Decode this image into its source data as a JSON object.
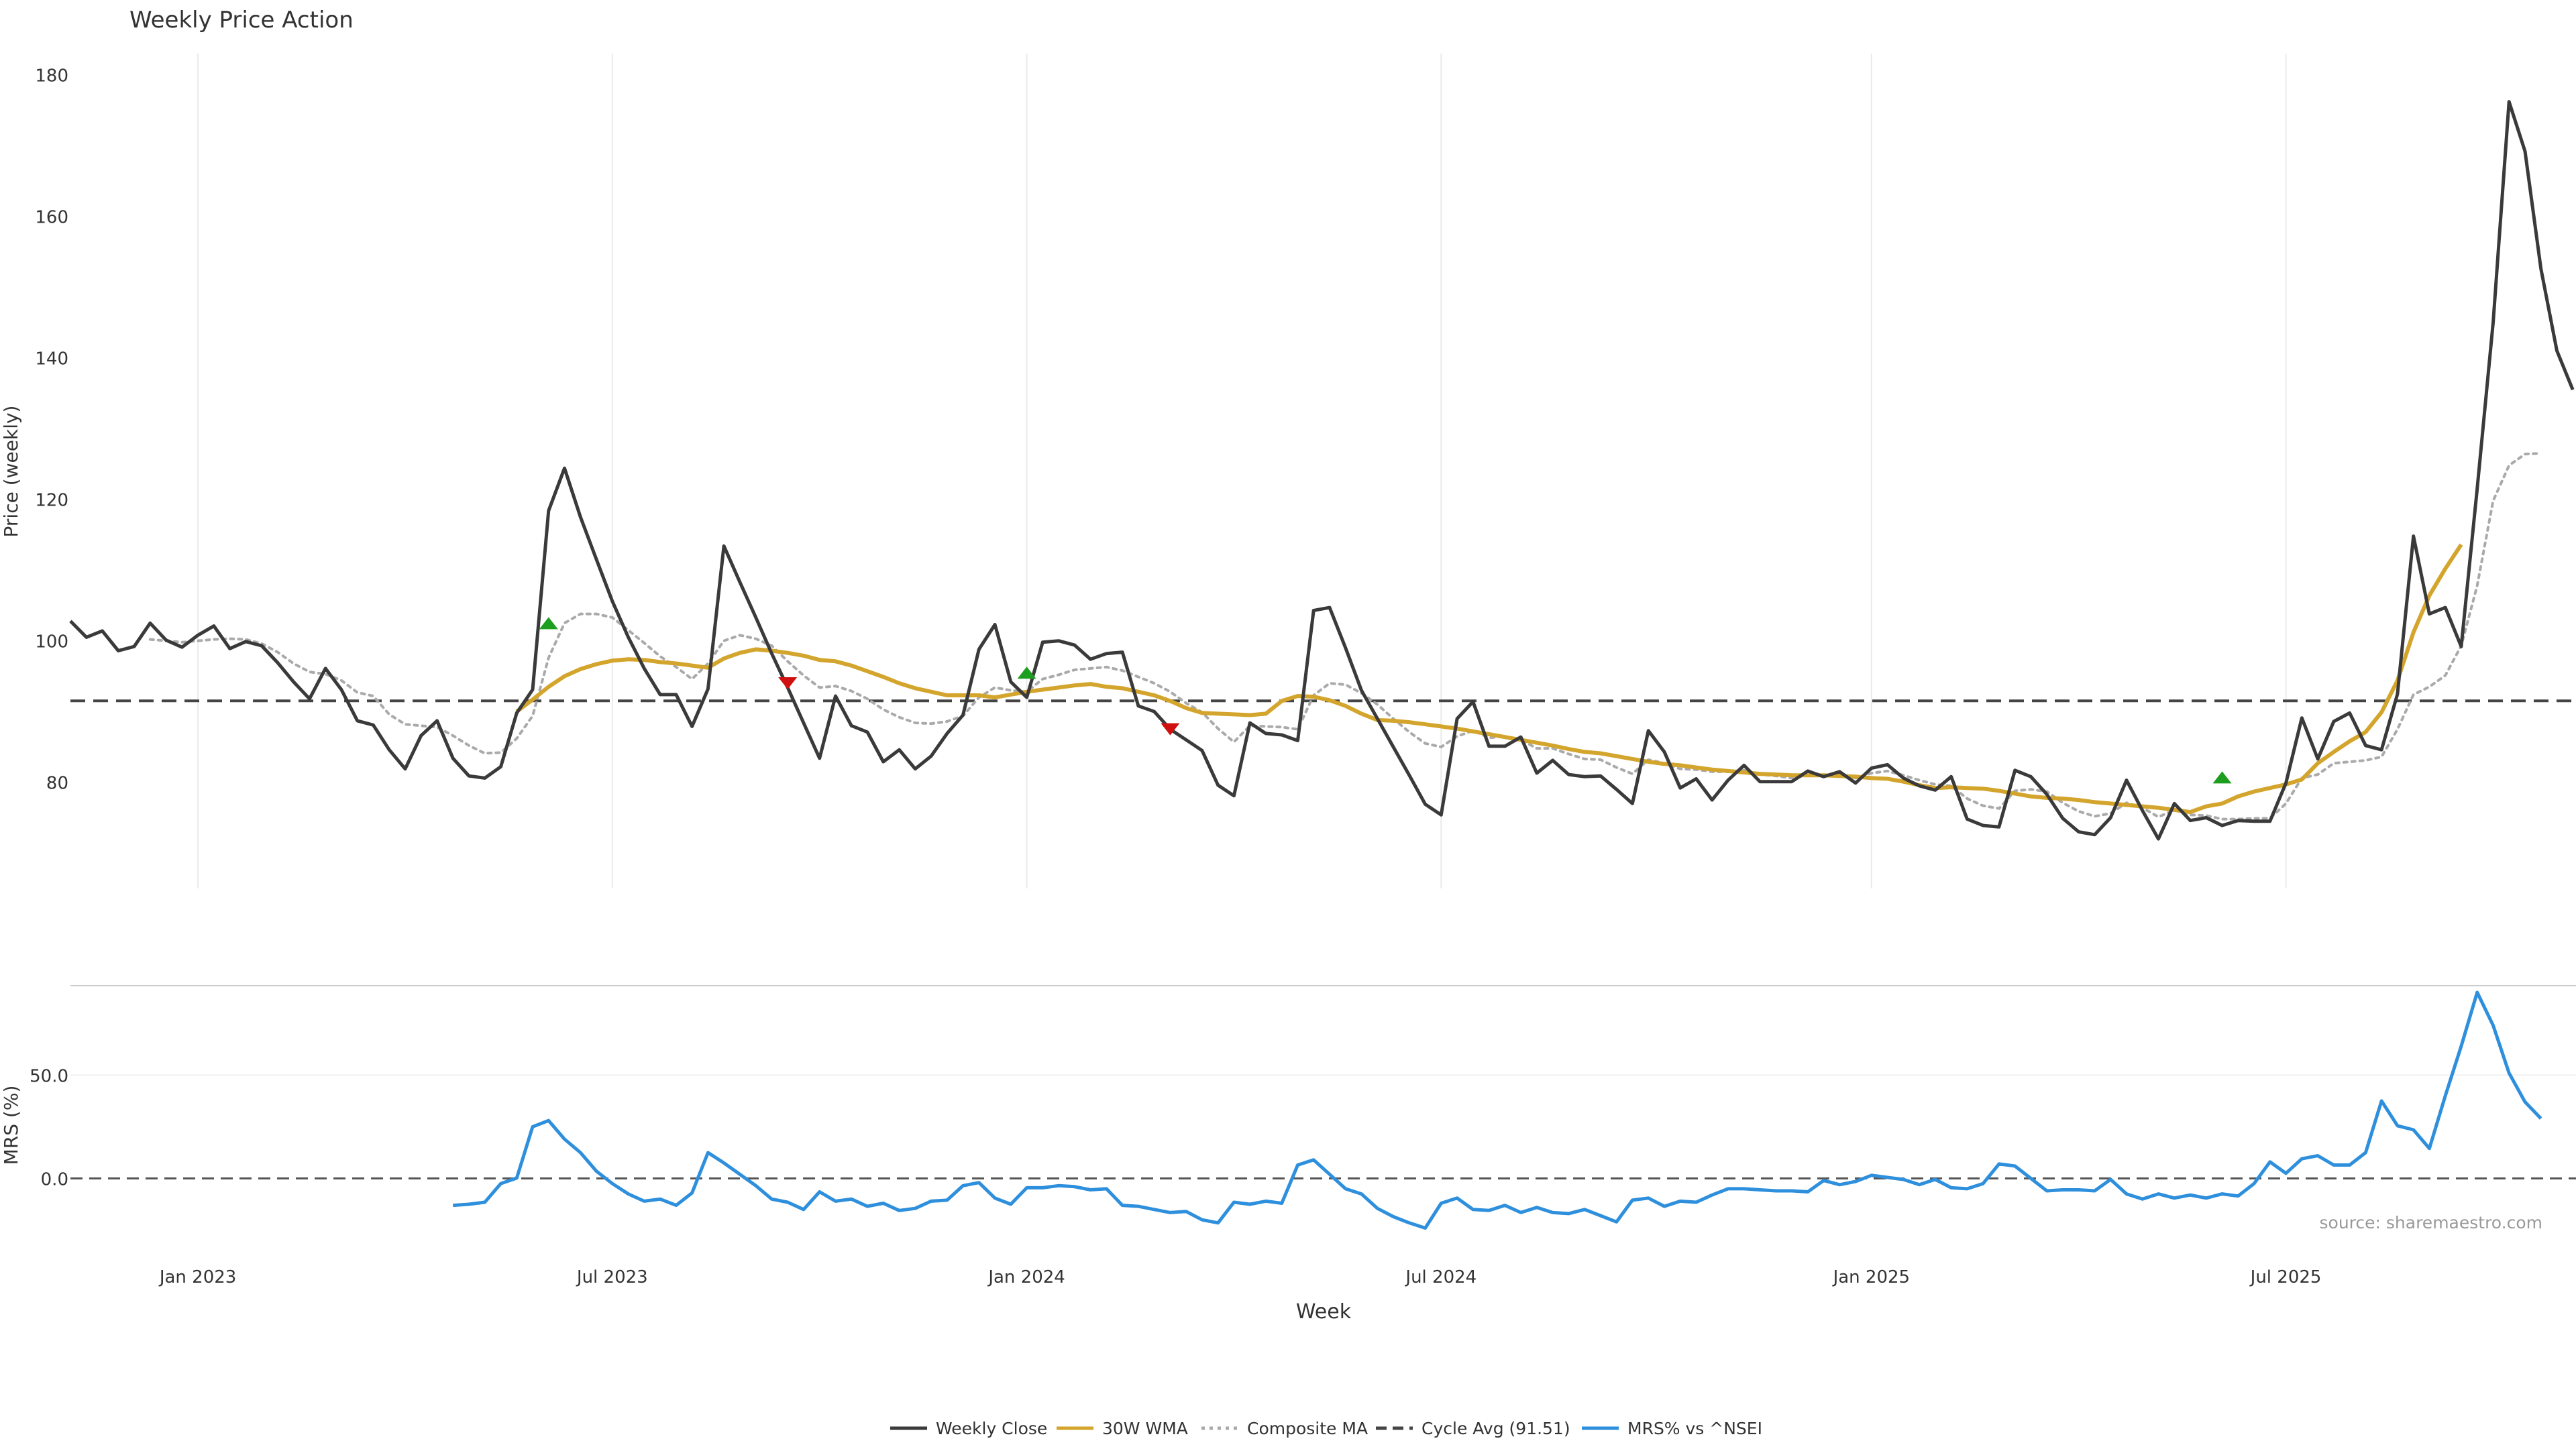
{
  "chart_data": [
    {
      "type": "line",
      "title": "Weekly Price Action",
      "ylabel": "Price (weekly)",
      "ylim": [
        65,
        183
      ],
      "yticks": [
        80,
        100,
        120,
        140,
        160,
        180
      ],
      "grid": "vertical",
      "cycle_avg": 91.51,
      "x_start": "2022-11-07",
      "x_step_days": 7,
      "series": [
        {
          "name": "Weekly Close",
          "color": "#3a3a3a",
          "values": [
            102.8,
            100.5,
            101.4,
            98.6,
            99.2,
            102.5,
            100.1,
            99.1,
            100.8,
            102.1,
            98.9,
            99.9,
            99.3,
            96.9,
            94.2,
            91.8,
            96.1,
            93.1,
            88.7,
            88.1,
            84.6,
            81.9,
            86.6,
            88.7,
            83.4,
            80.9,
            80.6,
            82.2,
            89.8,
            93.1,
            118.4,
            124.4,
            117.5,
            111.5,
            105.6,
            100.5,
            96.1,
            92.4,
            92.4,
            87.9,
            93.2,
            113.4,
            108.3,
            103.3,
            98.2,
            93.4,
            88.4,
            83.4,
            92.2,
            88.0,
            87.1,
            82.9,
            84.6,
            81.9,
            83.7,
            86.9,
            89.5,
            98.8,
            102.3,
            94.2,
            92.0,
            99.8,
            100.0,
            99.4,
            97.4,
            98.2,
            98.4,
            90.8,
            90.0,
            87.5,
            86.0,
            84.5,
            79.6,
            78.1,
            88.4,
            86.9,
            86.7,
            85.9,
            104.3,
            104.7,
            99.0,
            93.0,
            89.0,
            85.0,
            81.0,
            76.9,
            75.4,
            89.0,
            91.4,
            85.1,
            85.1,
            86.4,
            81.3,
            83.1,
            81.1,
            80.8,
            80.9,
            79.0,
            77.0,
            87.3,
            84.3,
            79.2,
            80.5,
            77.5,
            80.3,
            82.4,
            80.1,
            80.1,
            80.1,
            81.6,
            80.8,
            81.5,
            79.9,
            82.0,
            82.5,
            80.6,
            79.5,
            78.9,
            80.8,
            74.8,
            73.9,
            73.7,
            81.7,
            80.8,
            78.3,
            74.9,
            73.0,
            72.6,
            75.0,
            80.3,
            76.0,
            72.0,
            77.0,
            74.6,
            75.0,
            73.9,
            74.6,
            74.5,
            74.5,
            79.9,
            89.1,
            83.3,
            88.6,
            89.8,
            85.2,
            84.6,
            92.5,
            114.8,
            103.8,
            104.7,
            99.2,
            121.5,
            145.0,
            176.2,
            169.2,
            152.6,
            141.0,
            135.5
          ]
        },
        {
          "name": "30W WMA",
          "color": "#d4a52c",
          "start_index": 28,
          "values": [
            90.0,
            91.7,
            93.5,
            95.0,
            96.0,
            96.7,
            97.2,
            97.4,
            97.3,
            97.0,
            96.8,
            96.5,
            96.2,
            97.5,
            98.3,
            98.8,
            98.6,
            98.3,
            97.9,
            97.3,
            97.1,
            96.5,
            95.7,
            94.9,
            94.0,
            93.3,
            92.8,
            92.3,
            92.3,
            92.3,
            92.0,
            92.4,
            92.8,
            93.1,
            93.4,
            93.7,
            93.9,
            93.5,
            93.3,
            92.8,
            92.3,
            91.5,
            90.5,
            89.8,
            89.7,
            89.6,
            89.5,
            89.7,
            91.5,
            92.2,
            92.1,
            91.6,
            90.8,
            89.7,
            88.8,
            88.7,
            88.5,
            88.2,
            87.9,
            87.6,
            87.2,
            86.8,
            86.4,
            86.0,
            85.6,
            85.2,
            84.7,
            84.3,
            84.1,
            83.7,
            83.3,
            82.9,
            82.6,
            82.4,
            82.1,
            81.8,
            81.6,
            81.4,
            81.2,
            81.1,
            81.0,
            81.0,
            81.0,
            80.9,
            80.8,
            80.6,
            80.5,
            80.1,
            79.6,
            79.2,
            79.3,
            79.2,
            79.1,
            78.8,
            78.4,
            78.0,
            77.8,
            77.7,
            77.5,
            77.2,
            77.0,
            76.8,
            76.6,
            76.4,
            76.1,
            75.8,
            76.6,
            77.0,
            78.0,
            78.7,
            79.2,
            79.7,
            80.4,
            82.7,
            84.3,
            85.8,
            87.1,
            89.9,
            94.4,
            101.2,
            106.4,
            110.2,
            113.6
          ]
        },
        {
          "name": "Composite MA",
          "color": "#aaaaaa",
          "values": [
            null,
            null,
            null,
            null,
            null,
            100.2,
            100.0,
            99.8,
            100.0,
            100.2,
            100.3,
            100.2,
            99.6,
            98.4,
            96.8,
            95.6,
            95.3,
            94.4,
            92.7,
            92.2,
            89.6,
            88.2,
            88.0,
            87.8,
            86.6,
            85.2,
            84.1,
            84.2,
            86.2,
            89.4,
            97.6,
            102.5,
            103.8,
            103.8,
            103.3,
            101.5,
            99.7,
            97.8,
            96.3,
            94.6,
            96.8,
            100.0,
            100.8,
            100.3,
            99.3,
            97.1,
            95.1,
            93.4,
            93.6,
            92.9,
            91.8,
            90.3,
            89.2,
            88.4,
            88.3,
            88.6,
            89.4,
            92.0,
            93.4,
            93.0,
            92.8,
            94.6,
            95.2,
            95.9,
            96.1,
            96.3,
            95.8,
            94.9,
            94.0,
            92.8,
            91.2,
            89.9,
            87.6,
            85.7,
            88.0,
            87.9,
            87.8,
            87.5,
            92.3,
            94.0,
            93.8,
            92.6,
            91.0,
            89.0,
            87.1,
            85.5,
            85.0,
            86.5,
            87.3,
            86.3,
            86.5,
            86.0,
            84.8,
            84.8,
            84.0,
            83.3,
            83.2,
            82.1,
            81.2,
            83.2,
            82.7,
            81.9,
            81.8,
            81.5,
            81.5,
            81.7,
            81.1,
            80.9,
            80.6,
            81.0,
            81.0,
            81.2,
            80.6,
            81.3,
            81.6,
            81.0,
            80.3,
            79.7,
            79.5,
            77.7,
            76.7,
            76.3,
            78.8,
            79.0,
            78.7,
            77.1,
            75.9,
            75.2,
            75.6,
            77.1,
            76.4,
            75.1,
            76.1,
            75.4,
            75.3,
            74.8,
            74.8,
            74.9,
            74.9,
            77.0,
            80.6,
            81.1,
            82.7,
            82.9,
            83.1,
            83.6,
            87.5,
            92.4,
            93.5,
            95.1,
            99.3,
            107.8,
            119.8,
            124.8,
            126.4,
            126.5
          ]
        }
      ],
      "signals": [
        {
          "type": "buy",
          "index": 30,
          "value": 102.5
        },
        {
          "type": "sell",
          "index": 45,
          "value": 94.0
        },
        {
          "type": "buy",
          "index": 60,
          "value": 95.5
        },
        {
          "type": "sell",
          "index": 69,
          "value": 87.5
        },
        {
          "type": "buy",
          "index": 135,
          "value": 80.7
        }
      ]
    },
    {
      "type": "line",
      "ylabel": "MRS (%)",
      "xlabel": "Week",
      "ylim": [
        -30,
        90
      ],
      "yticks": [
        "0.0",
        "50.0"
      ],
      "ytick_values": [
        0,
        50
      ],
      "xticks": [
        {
          "label": "Jan 2023",
          "date": "2023-01-02"
        },
        {
          "label": "Jul 2023",
          "date": "2023-07-03"
        },
        {
          "label": "Jan 2024",
          "date": "2024-01-01"
        },
        {
          "label": "Jul 2024",
          "date": "2024-07-01"
        },
        {
          "label": "Jan 2025",
          "date": "2025-01-06"
        },
        {
          "label": "Jul 2025",
          "date": "2025-07-07"
        }
      ],
      "series": [
        {
          "name": "MRS% vs ^NSEI",
          "color": "#2e8fdc",
          "start_index": 24,
          "values": [
            -13.0,
            -12.5,
            -11.5,
            -2.5,
            0.2,
            25.0,
            28.0,
            19.0,
            12.5,
            3.5,
            -2.5,
            -7.5,
            -11.0,
            -10.0,
            -13.0,
            -7.0,
            12.5,
            7.5,
            2.0,
            -3.5,
            -10.0,
            -11.5,
            -15.0,
            -6.5,
            -11.0,
            -10.0,
            -13.5,
            -12.0,
            -15.5,
            -14.5,
            -11.0,
            -10.5,
            -3.5,
            -2.0,
            -9.5,
            -12.5,
            -4.5,
            -4.5,
            -3.5,
            -4.0,
            -5.5,
            -5.0,
            -13.0,
            -13.5,
            -15.0,
            -16.5,
            -16.0,
            -20.0,
            -21.5,
            -11.5,
            -12.5,
            -11.0,
            -12.0,
            6.5,
            9.0,
            2.0,
            -5.0,
            -7.5,
            -14.5,
            -18.5,
            -21.5,
            -24.0,
            -12.0,
            -9.5,
            -15.0,
            -15.5,
            -13.0,
            -16.5,
            -14.0,
            -16.5,
            -17.0,
            -15.0,
            -18.0,
            -21.0,
            -10.5,
            -9.5,
            -13.5,
            -11.0,
            -11.5,
            -8.0,
            -5.0,
            -5.0,
            -5.5,
            -6.0,
            -6.0,
            -6.5,
            -1.0,
            -3.0,
            -1.5,
            1.5,
            0.5,
            -0.5,
            -3.0,
            -0.5,
            -4.5,
            -5.0,
            -2.5,
            7.0,
            6.0,
            0.0,
            -6.0,
            -5.5,
            -5.5,
            -6.0,
            -0.5,
            -7.5,
            -10.0,
            -7.5,
            -9.5,
            -8.0,
            -9.5,
            -7.5,
            -8.5,
            -2.5,
            8.0,
            2.5,
            9.5,
            11.0,
            6.5,
            6.5,
            12.5,
            37.5,
            25.5,
            23.5,
            14.5,
            40.0,
            64.0,
            90.0,
            74.0,
            51.0,
            37.0,
            29.0
          ]
        },
        {
          "name": "Zero line",
          "color": "#555555",
          "values": [
            0
          ]
        }
      ]
    }
  ],
  "legend": {
    "placement": "bottom-center",
    "items": [
      {
        "label": "Weekly Close",
        "color": "#3a3a3a",
        "style": "solid"
      },
      {
        "label": "30W WMA",
        "color": "#d4a52c",
        "style": "solid"
      },
      {
        "label": "Composite MA",
        "color": "#aaaaaa",
        "style": "dotted"
      },
      {
        "label": "Cycle Avg (91.51)",
        "color": "#444444",
        "style": "dashed"
      },
      {
        "label": "MRS% vs ^NSEI",
        "color": "#2e8fdc",
        "style": "solid"
      }
    ]
  },
  "source_note": "source: sharemaestro.com",
  "colors": {
    "buy": "#1e9e1e",
    "sell": "#d01010",
    "grid": "#eaeaea",
    "divider": "#cccccc"
  }
}
